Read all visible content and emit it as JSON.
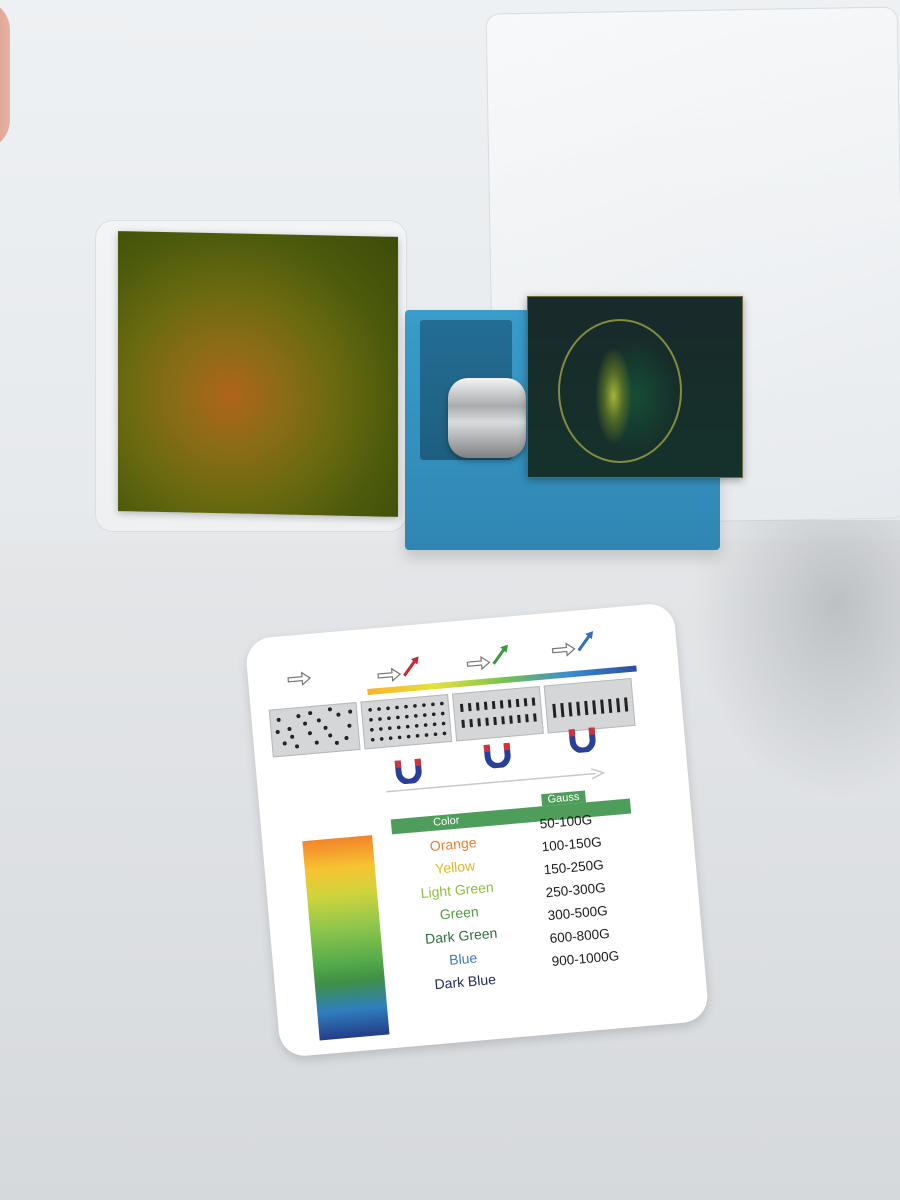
{
  "card": {
    "table_header": {
      "color_label": "Color",
      "gauss_label": "Gauss"
    },
    "rows": [
      {
        "color": "Orange",
        "gauss": "50-100G",
        "text_color": "#ef7d2c"
      },
      {
        "color": "Yellow",
        "gauss": "100-150G",
        "text_color": "#e3b52a"
      },
      {
        "color": "Light Green",
        "gauss": "150-250G",
        "text_color": "#8dbf3f"
      },
      {
        "color": "Green",
        "gauss": "250-300G",
        "text_color": "#4e9f3d"
      },
      {
        "color": "Dark Green",
        "gauss": "300-500G",
        "text_color": "#2f6e3a"
      },
      {
        "color": "Blue",
        "gauss": "600-800G",
        "text_color": "#3c78c8"
      },
      {
        "color": "Dark Blue",
        "gauss": "900-1000G",
        "text_color": "#1e2a55"
      }
    ],
    "colors": {
      "header_green": "#4f9d5b",
      "magnet_red": "#d0343a",
      "magnet_blue": "#2a3f9a"
    }
  },
  "scene": {
    "icons": [
      "magnet-icon",
      "arrow-icon"
    ]
  }
}
